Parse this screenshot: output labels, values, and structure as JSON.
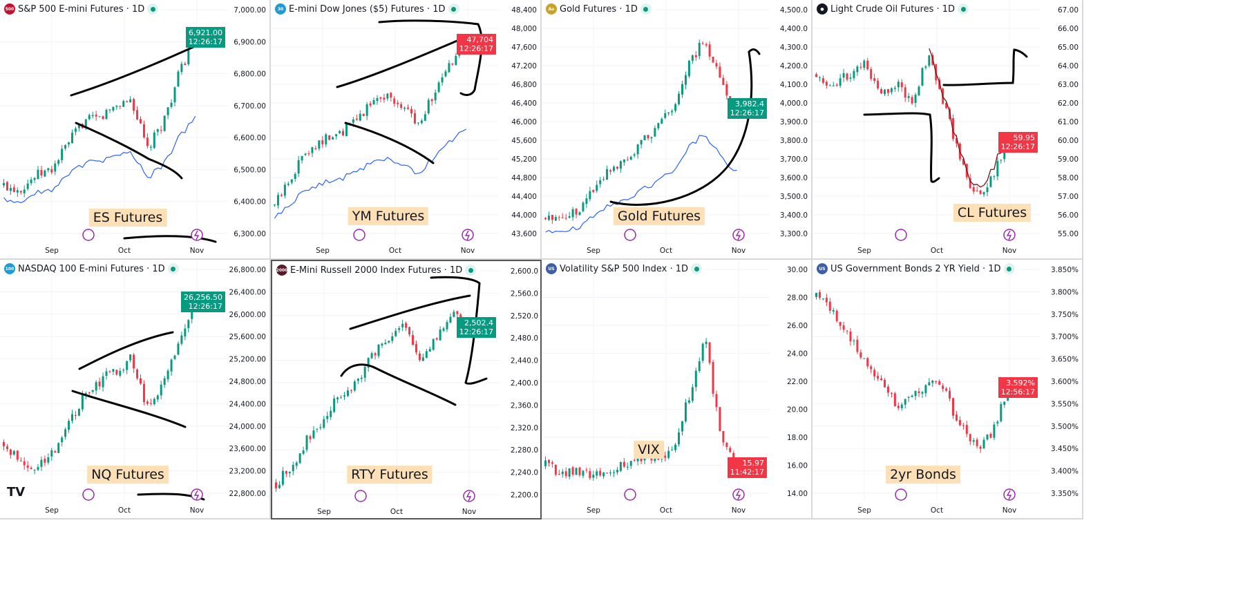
{
  "colors": {
    "up": "#089981",
    "down": "#f23645",
    "ma": "#2962ff",
    "ma2": "#7e2fb0",
    "drawing": "#000000",
    "note_bg": "#fde0b6",
    "ma_dark": "#7a1010"
  },
  "time_axis": [
    "Sep",
    "Oct",
    "Nov"
  ],
  "chart_data": [
    {
      "type": "candlestick",
      "title": "S&P 500 E-mini Futures · 1D",
      "badge": "500",
      "badge_color": "#c8102e",
      "ylim": [
        6300,
        7000
      ],
      "yticks": [
        "7,000.00",
        "6,900.00",
        "6,800.00",
        "6,700.00",
        "6,600.00",
        "6,500.00",
        "6,400.00",
        "6,300.00"
      ],
      "weekly_closes": [
        6450,
        6440,
        6480,
        6500,
        6580,
        6650,
        6660,
        6700,
        6720,
        6560,
        6650,
        6800,
        6921
      ],
      "last_price": "6,921.00",
      "countdown": "12:26:17",
      "last_dir": "up",
      "note": "ES Futures",
      "ma": true
    },
    {
      "type": "candlestick",
      "title": "E-mini Dow Jones ($5) Futures · 1D",
      "badge": "30",
      "badge_color": "#1e9bd7",
      "ylim": [
        43600,
        48400
      ],
      "yticks": [
        "48,400",
        "48,000",
        "47,600",
        "47,200",
        "46,800",
        "46,400",
        "46,000",
        "45,600",
        "45,200",
        "44,800",
        "44,400",
        "44,000",
        "43,600"
      ],
      "weekly_closes": [
        44200,
        44800,
        45400,
        45600,
        45700,
        46000,
        46400,
        46600,
        46300,
        46000,
        46600,
        47200,
        47704
      ],
      "last_price": "47,704",
      "countdown": "12:26:17",
      "last_dir": "down",
      "note": "YM Futures",
      "ma": true
    },
    {
      "type": "candlestick",
      "title": "Gold Futures · 1D",
      "badge": "Au",
      "badge_color": "#c9a227",
      "ylim": [
        3300,
        4500
      ],
      "yticks": [
        "4,500.0",
        "4,400.0",
        "4,300.0",
        "4,200.0",
        "4,100.0",
        "4,000.0",
        "3,900.0",
        "3,800.0",
        "3,700.0",
        "3,600.0",
        "3,500.0",
        "3,400.0",
        "3,300.0"
      ],
      "weekly_closes": [
        3380,
        3400,
        3420,
        3550,
        3650,
        3700,
        3780,
        3870,
        3980,
        4200,
        4350,
        4100,
        3982
      ],
      "last_price": "3,982.4",
      "countdown": "12:26:17",
      "last_dir": "up",
      "note": "Gold Futures",
      "ma": true
    },
    {
      "type": "candlestick",
      "title": "Light Crude Oil Futures · 1D",
      "badge": "●",
      "badge_color": "#131722",
      "ylim": [
        55,
        67
      ],
      "yticks": [
        "67.00",
        "66.00",
        "65.00",
        "64.00",
        "63.00",
        "62.00",
        "61.00",
        "60.00",
        "59.00",
        "58.00",
        "57.00",
        "56.00",
        "55.00"
      ],
      "weekly_closes": [
        63.5,
        63,
        63.5,
        64,
        62.5,
        63,
        62,
        64.5,
        62,
        59,
        57,
        58,
        60
      ],
      "last_price": "59.95",
      "countdown": "12:26:17",
      "last_dir": "down",
      "note": "CL Futures",
      "ma": false
    },
    {
      "type": "candlestick",
      "title": "NASDAQ 100 E-mini Futures · 1D",
      "badge": "100",
      "badge_color": "#1e9bd7",
      "ylim": [
        22800,
        26800
      ],
      "yticks": [
        "26,800.00",
        "26,400.00",
        "26,000.00",
        "25,600.00",
        "25,200.00",
        "24,800.00",
        "24,400.00",
        "24,000.00",
        "23,600.00",
        "23,200.00",
        "22,800.00"
      ],
      "weekly_closes": [
        23700,
        23400,
        23300,
        23500,
        24000,
        24500,
        24800,
        25000,
        25200,
        24300,
        24800,
        25500,
        26256
      ],
      "last_price": "26,256.50",
      "countdown": "12:26:17",
      "last_dir": "up",
      "note": "NQ Futures",
      "ma": false
    },
    {
      "type": "candlestick",
      "title": "E-Mini Russell 2000 Index Futures · 1D",
      "badge": "2000",
      "badge_color": "#5a1a2a",
      "ylim": [
        2200,
        2600
      ],
      "yticks": [
        "2,600.0",
        "2,560.0",
        "2,520.0",
        "2,480.0",
        "2,440.0",
        "2,400.0",
        "2,360.0",
        "2,320.0",
        "2,280.0",
        "2,240.0",
        "2,200.0"
      ],
      "weekly_closes": [
        2220,
        2250,
        2300,
        2330,
        2380,
        2400,
        2450,
        2480,
        2500,
        2440,
        2480,
        2520,
        2502
      ],
      "last_price": "2,502.4",
      "countdown": "12:26:17",
      "last_dir": "up",
      "note": "RTY Futures",
      "ma": false
    },
    {
      "type": "candlestick",
      "title": "Volatility S&P 500 Index · 1D",
      "badge": "US",
      "badge_color": "#3c5fa8",
      "ylim": [
        14,
        30
      ],
      "yticks": [
        "30.00",
        "28.00",
        "26.00",
        "24.00",
        "22.00",
        "20.00",
        "18.00",
        "16.00",
        "14.00"
      ],
      "weekly_closes": [
        16,
        15.5,
        15.5,
        15.2,
        15.5,
        16,
        16.5,
        16.5,
        17,
        21,
        25,
        18,
        16
      ],
      "last_price": "15.97",
      "countdown": "11:42:17",
      "last_dir": "down",
      "note": "VIX",
      "ma": false
    },
    {
      "type": "candlestick",
      "title": "US Government Bonds 2 YR Yield · 1D",
      "badge": "US",
      "badge_color": "#3c5fa8",
      "ylim": [
        3.35,
        3.85
      ],
      "yticks": [
        "3.850%",
        "3.800%",
        "3.750%",
        "3.700%",
        "3.650%",
        "3.600%",
        "3.550%",
        "3.500%",
        "3.450%",
        "3.400%",
        "3.350%"
      ],
      "weekly_closes": [
        3.79,
        3.76,
        3.7,
        3.65,
        3.6,
        3.55,
        3.56,
        3.6,
        3.58,
        3.5,
        3.45,
        3.48,
        3.59
      ],
      "last_price": "3.592%",
      "countdown": "12:56:17",
      "last_dir": "down",
      "note": "2yr Bonds",
      "ma": false
    }
  ],
  "logo": "TV"
}
